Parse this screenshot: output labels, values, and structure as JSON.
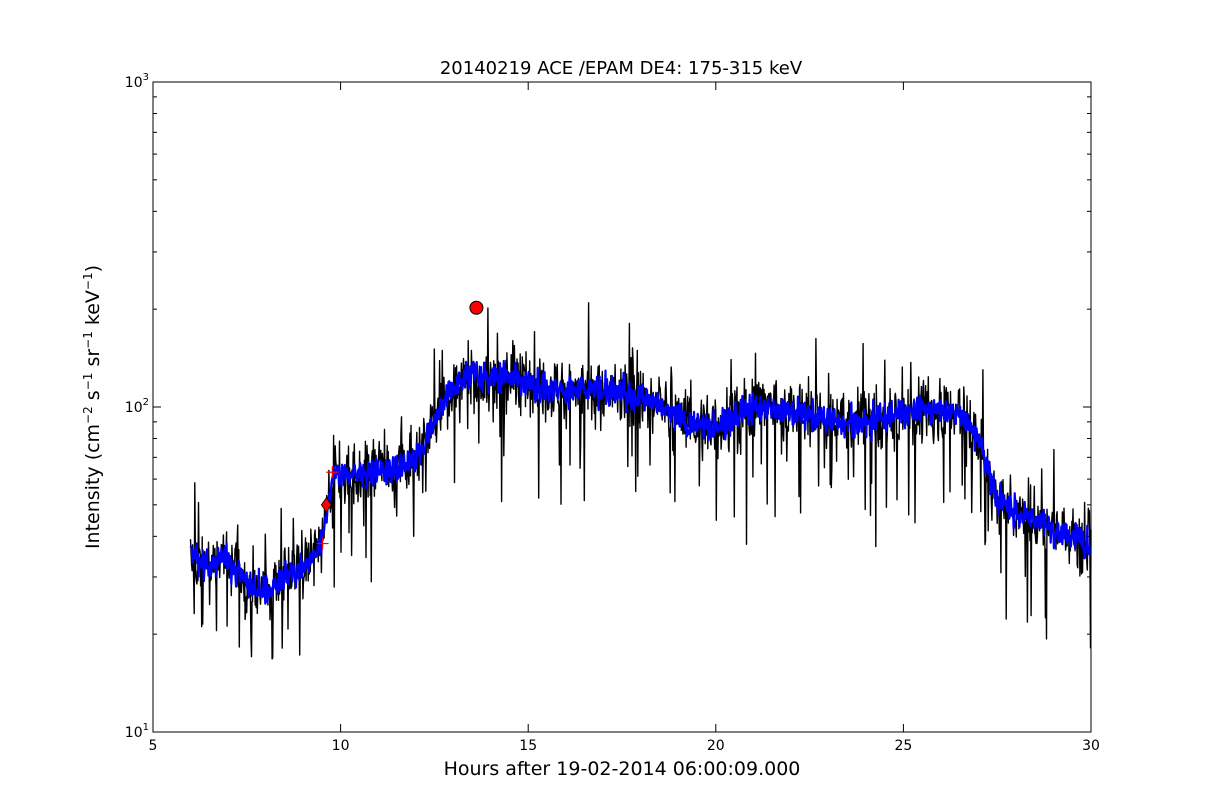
{
  "chart_data": {
    "type": "line",
    "title": "20140219 ACE /EPAM DE4: 175-315 keV",
    "xlabel": "Hours after 19-02-2014 06:00:09.000",
    "ylabel": {
      "prefix": "Intensity (cm",
      "exp1": "−2",
      "s": " s",
      "exp2": "−1",
      "sr": " sr",
      "exp3": "−1",
      "kev": " keV",
      "exp4": "−1",
      "suffix": ")"
    },
    "xlim": [
      5,
      30
    ],
    "ylim": [
      10,
      1000
    ],
    "yscale": "log",
    "grid": false,
    "x_ticks": [
      {
        "value": 5,
        "label": "5"
      },
      {
        "value": 10,
        "label": "10"
      },
      {
        "value": 15,
        "label": "15"
      },
      {
        "value": 20,
        "label": "20"
      },
      {
        "value": 25,
        "label": "25"
      },
      {
        "value": 30,
        "label": "30"
      }
    ],
    "y_ticks": [
      {
        "value": 10,
        "base": "10",
        "exp": "1"
      },
      {
        "value": 100,
        "base": "10",
        "exp": "2"
      },
      {
        "value": 1000,
        "base": "10",
        "exp": "3"
      }
    ],
    "trend_points": [
      [
        6.0,
        35
      ],
      [
        6.5,
        32
      ],
      [
        7.0,
        35
      ],
      [
        7.5,
        28
      ],
      [
        8.0,
        27
      ],
      [
        8.5,
        30
      ],
      [
        9.0,
        32
      ],
      [
        9.4,
        35
      ],
      [
        9.6,
        44
      ],
      [
        9.8,
        62
      ],
      [
        10.5,
        62
      ],
      [
        11.0,
        64
      ],
      [
        11.5,
        64
      ],
      [
        12.0,
        70
      ],
      [
        12.5,
        90
      ],
      [
        13.0,
        115
      ],
      [
        13.5,
        128
      ],
      [
        14.0,
        120
      ],
      [
        14.5,
        125
      ],
      [
        15.0,
        118
      ],
      [
        16.0,
        112
      ],
      [
        17.0,
        112
      ],
      [
        18.0,
        108
      ],
      [
        18.6,
        100
      ],
      [
        19.0,
        92
      ],
      [
        19.5,
        88
      ],
      [
        20.0,
        88
      ],
      [
        20.5,
        92
      ],
      [
        21.0,
        100
      ],
      [
        21.5,
        100
      ],
      [
        22.0,
        98
      ],
      [
        22.5,
        95
      ],
      [
        23.0,
        92
      ],
      [
        23.5,
        90
      ],
      [
        24.0,
        90
      ],
      [
        24.5,
        92
      ],
      [
        25.0,
        95
      ],
      [
        25.5,
        98
      ],
      [
        26.0,
        98
      ],
      [
        26.5,
        96
      ],
      [
        27.0,
        80
      ],
      [
        27.3,
        62
      ],
      [
        27.5,
        52
      ],
      [
        28.0,
        48
      ],
      [
        28.5,
        45
      ],
      [
        29.0,
        42
      ],
      [
        29.5,
        40
      ],
      [
        30.0,
        38
      ]
    ],
    "series": [
      {
        "values_ref": "trend_points",
        "color": "#000000",
        "noise": "raw",
        "stroke": 1.4
      },
      {
        "values_ref": "trend_points",
        "color": "#0000ff",
        "noise": "smoothed",
        "stroke": 2.2
      }
    ],
    "markers": [
      {
        "x": 13.62,
        "y": 202,
        "color": "#ff0000",
        "shape": "circle"
      },
      {
        "x": 9.62,
        "y": 50,
        "color": "#ff0000",
        "shape": "diamond"
      }
    ],
    "cross_markers": [
      {
        "x": 9.52,
        "y": 38,
        "color": "#ff0000"
      },
      {
        "x": 9.78,
        "y": 63,
        "color": "#ff0000"
      }
    ]
  }
}
